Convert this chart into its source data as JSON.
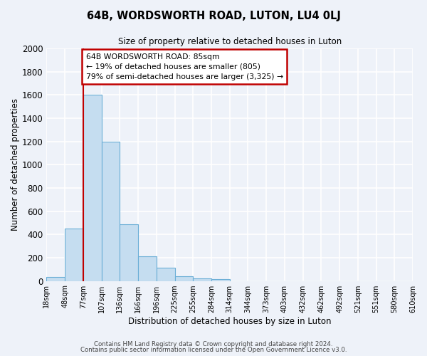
{
  "title": "64B, WORDSWORTH ROAD, LUTON, LU4 0LJ",
  "subtitle": "Size of property relative to detached houses in Luton",
  "xlabel": "Distribution of detached houses by size in Luton",
  "ylabel": "Number of detached properties",
  "bin_labels": [
    "18sqm",
    "48sqm",
    "77sqm",
    "107sqm",
    "136sqm",
    "166sqm",
    "196sqm",
    "225sqm",
    "255sqm",
    "284sqm",
    "314sqm",
    "344sqm",
    "373sqm",
    "403sqm",
    "432sqm",
    "462sqm",
    "492sqm",
    "521sqm",
    "551sqm",
    "580sqm",
    "610sqm"
  ],
  "bar_heights": [
    35,
    450,
    1600,
    1200,
    490,
    210,
    115,
    40,
    20,
    15,
    0,
    0,
    0,
    0,
    0,
    0,
    0,
    0,
    0,
    0
  ],
  "bar_color": "#c5ddf0",
  "bar_edge_color": "#6aaed6",
  "vline_color": "#c00000",
  "annotation_line1": "64B WORDSWORTH ROAD: 85sqm",
  "annotation_line2": "← 19% of detached houses are smaller (805)",
  "annotation_line3": "79% of semi-detached houses are larger (3,325) →",
  "annotation_box_color": "#ffffff",
  "annotation_box_edge": "#c00000",
  "ylim": [
    0,
    2000
  ],
  "yticks": [
    0,
    200,
    400,
    600,
    800,
    1000,
    1200,
    1400,
    1600,
    1800,
    2000
  ],
  "footer1": "Contains HM Land Registry data © Crown copyright and database right 2024.",
  "footer2": "Contains public sector information licensed under the Open Government Licence v3.0.",
  "bg_color": "#eef2f9",
  "grid_color": "#ffffff"
}
